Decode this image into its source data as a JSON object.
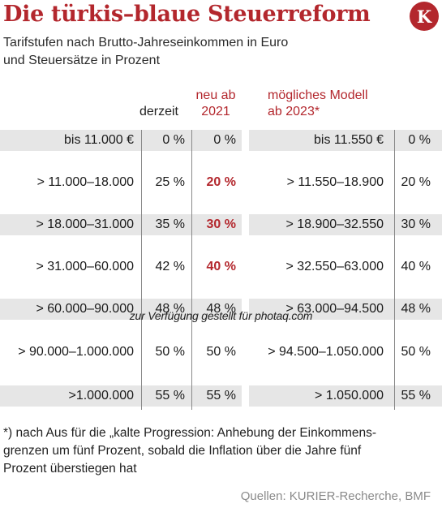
{
  "header": {
    "title": "Die türkis–blaue Steuerreform",
    "logo_letter": "K",
    "subtitle_line1": "Tarifstufen nach Brutto-Jahreseinkommen in Euro",
    "subtitle_line2": "und Steuersätze in Prozent"
  },
  "columns": {
    "current": "derzeit",
    "new_line1": "neu ab",
    "new_line2": "2021",
    "model_line1": "mögliches Modell",
    "model_line2": "ab 2023*"
  },
  "rows": [
    {
      "bracket": "bis 11.000 €",
      "current": "0 %",
      "new": "0 %",
      "model_bracket": "bis 11.550 €",
      "model_rate": "0 %"
    },
    {
      "bracket": "> 11.000–18.000",
      "current": "25 %",
      "new": "20 %",
      "model_bracket": "> 11.550–18.900",
      "model_rate": "20 %"
    },
    {
      "bracket": "> 18.000–31.000",
      "current": "35 %",
      "new": "30 %",
      "model_bracket": "> 18.900–32.550",
      "model_rate": "30 %"
    },
    {
      "bracket": "> 31.000–60.000",
      "current": "42 %",
      "new": "40 %",
      "model_bracket": "> 32.550–63.000",
      "model_rate": "40 %"
    },
    {
      "bracket": "> 60.000–90.000",
      "current": "48 %",
      "new": "48 %",
      "model_bracket": "> 63.000–94.500",
      "model_rate": "48 %"
    },
    {
      "bracket": "> 90.000–1.000.000",
      "current": "50 %",
      "new": "50 %",
      "model_bracket": "> 94.500–1.050.000",
      "model_rate": "50 %"
    },
    {
      "bracket": ">1.000.000",
      "current": "55 %",
      "new": "55 %",
      "model_bracket": "> 1.050.000",
      "model_rate": "55 %"
    }
  ],
  "highlight_color": "#b3272d",
  "watermark": "zur Verfügung gestellt für photaq.com",
  "footnote": {
    "line1": "*) nach Aus für die „kalte Progression: Anhebung der Einkommens-",
    "line2": "grenzen um fünf Prozent, sobald die Inflation über die Jahre fünf",
    "line3": "Prozent überstiegen hat"
  },
  "source": "Quellen: KURIER-Recherche, BMF"
}
